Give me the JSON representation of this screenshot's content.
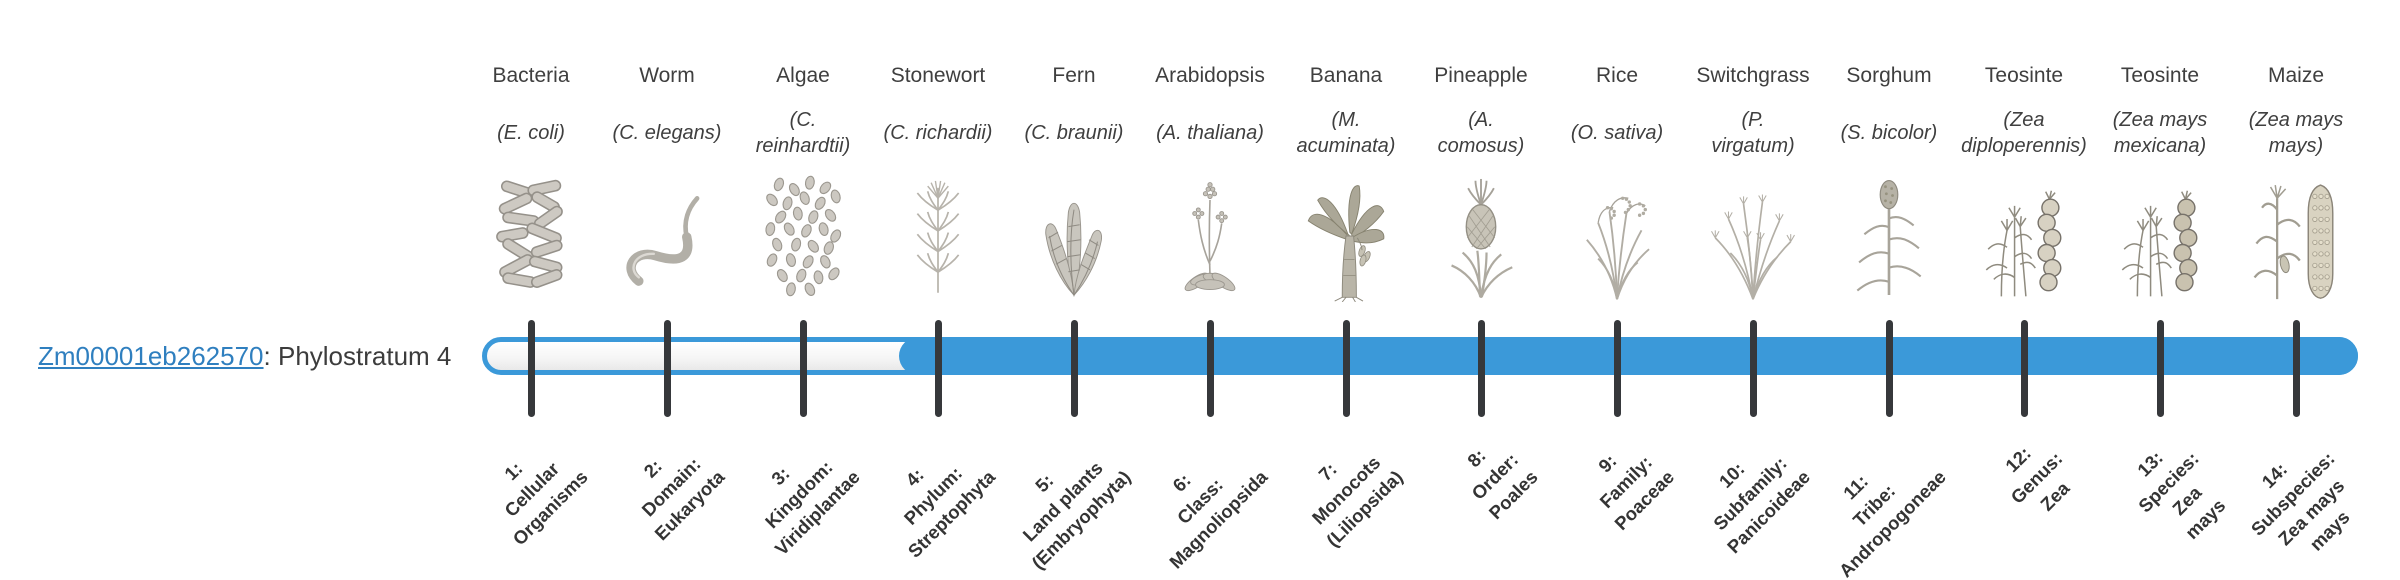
{
  "gene": {
    "id": "Zm00001eb262570",
    "suffix": ": Phylostratum 4",
    "phylostratum_label": "Phylostratum 4"
  },
  "timeline": {
    "strata_count": 14,
    "filled_from_stratum": 4,
    "bar_color": "#3B99D9",
    "tick_color": "#36383B",
    "link_color": "#2F7FBF"
  },
  "columns": [
    {
      "name": "Bacteria",
      "species": "(E. coli)",
      "icon": "bacteria-illustration",
      "stratum_label": "1:\nCellular\nOrganisms",
      "filled": false
    },
    {
      "name": "Worm",
      "species": "(C. elegans)",
      "icon": "worm-illustration",
      "stratum_label": "2:\nDomain:\nEukaryota",
      "filled": false
    },
    {
      "name": "Algae",
      "species": "(C.\nreinhardtii)",
      "icon": "algae-illustration",
      "stratum_label": "3:\nKingdom:\nViridiplantae",
      "filled": false
    },
    {
      "name": "Stonewort",
      "species": "(C. richardii)",
      "icon": "stonewort-illustration",
      "stratum_label": "4:\nPhylum:\nStreptophyta",
      "filled": true
    },
    {
      "name": "Fern",
      "species": "(C. braunii)",
      "icon": "fern-illustration",
      "stratum_label": "5:\nLand plants\n(Embryophyta)",
      "filled": true
    },
    {
      "name": "Arabidopsis",
      "species": "(A. thaliana)",
      "icon": "arabidopsis-illustration",
      "stratum_label": "6:\nClass:\nMagnoliopsida",
      "filled": true
    },
    {
      "name": "Banana",
      "species": "(M.\nacuminata)",
      "icon": "banana-illustration",
      "stratum_label": "7:\nMonocots\n(Liliopsida)",
      "filled": true
    },
    {
      "name": "Pineapple",
      "species": "(A.\ncomosus)",
      "icon": "pineapple-illustration",
      "stratum_label": "8:\nOrder:\nPoales",
      "filled": true
    },
    {
      "name": "Rice",
      "species": "(O. sativa)",
      "icon": "rice-illustration",
      "stratum_label": "9:\nFamily:\nPoaceae",
      "filled": true
    },
    {
      "name": "Switchgrass",
      "species": "(P.\nvirgatum)",
      "icon": "switchgrass-illustration",
      "stratum_label": "10:\nSubfamily:\nPanicoideae",
      "filled": true
    },
    {
      "name": "Sorghum",
      "species": "(S. bicolor)",
      "icon": "sorghum-illustration",
      "stratum_label": "11:\nTribe:\nAndropogoneae",
      "filled": true
    },
    {
      "name": "Teosinte",
      "species": "(Zea\ndiploperennis)",
      "icon": "teosinte-diploperennis-illustration",
      "stratum_label": "12:\nGenus:\nZea",
      "filled": true
    },
    {
      "name": "Teosinte",
      "species": "(Zea mays\nmexicana)",
      "icon": "teosinte-mexicana-illustration",
      "stratum_label": "13:\nSpecies:\nZea\nmays",
      "filled": true
    },
    {
      "name": "Maize",
      "species": "(Zea mays\nmays)",
      "icon": "maize-illustration",
      "stratum_label": "14:\nSubspecies:\nZea mays\nmays",
      "filled": true
    }
  ]
}
